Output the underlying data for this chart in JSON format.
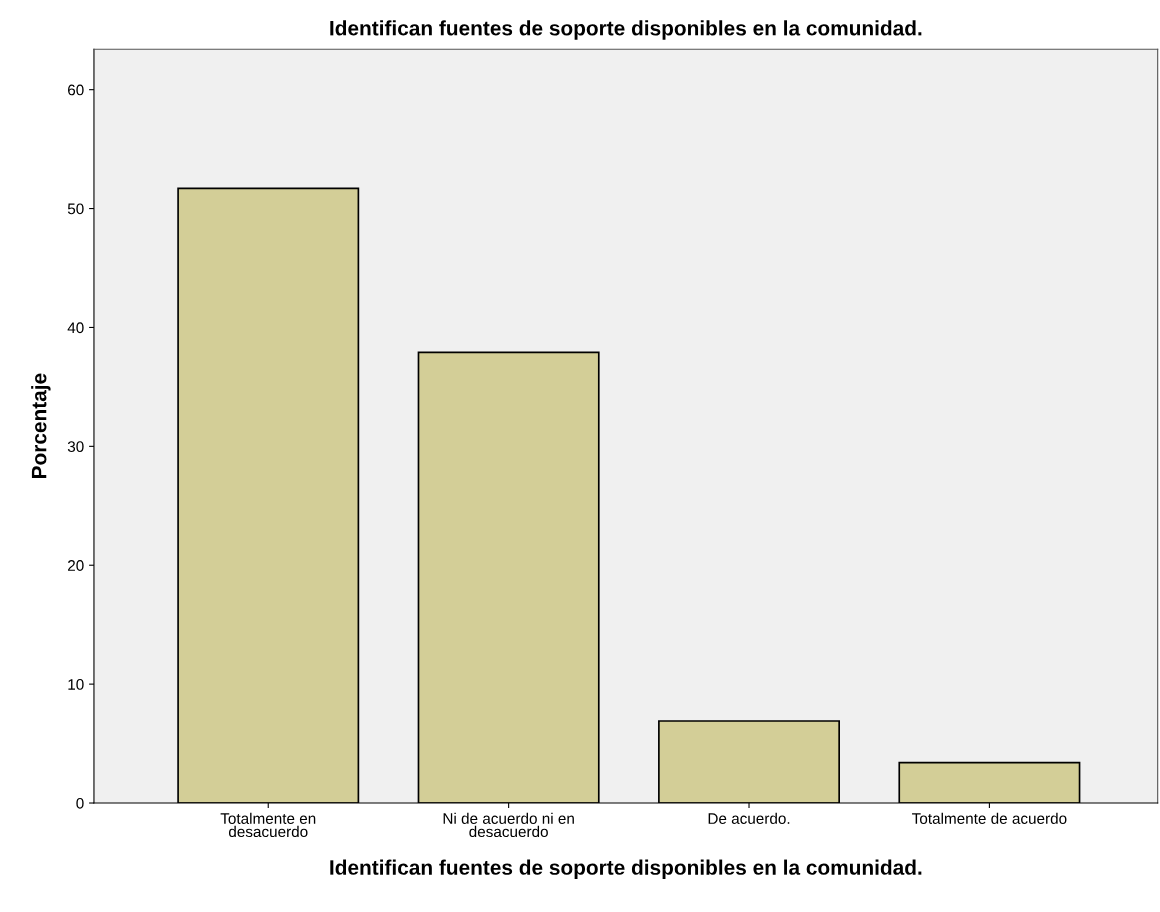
{
  "chart_data": {
    "type": "bar",
    "title": "Identifican fuentes de soporte disponibles en la comunidad.",
    "xlabel": "Identifican fuentes de soporte disponibles en la comunidad.",
    "ylabel": "Porcentaje",
    "categories": [
      "Totalmente en\ndesacuerdo",
      "Ni de acuerdo ni en\ndesacuerdo",
      "De acuerdo.",
      "Totalmente de acuerdo"
    ],
    "values": [
      51.7,
      37.9,
      6.9,
      3.4
    ],
    "color": "#d3ce97",
    "ylim": [
      0,
      63.4
    ],
    "yticks": [
      0,
      10,
      20,
      30,
      40,
      50,
      60
    ],
    "grid": false,
    "legend": false
  }
}
